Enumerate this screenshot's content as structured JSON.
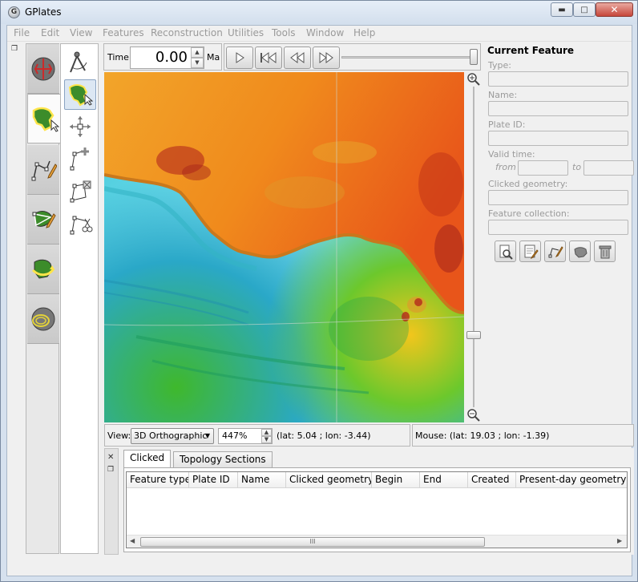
{
  "window": {
    "title": "GPlates",
    "app_icon_glyph": "G",
    "controls": {
      "minimize": "minimize-icon",
      "maximize": "maximize-icon",
      "close": "close-icon"
    }
  },
  "menu": [
    "File",
    "Edit",
    "View",
    "Features",
    "Reconstruction",
    "Utilities",
    "Tools",
    "Window",
    "Help"
  ],
  "toolgroups": [
    "view-globe-icon",
    "feature-inspection-icon",
    "digitisation-icon",
    "topology-icon",
    "pole-manipulation-icon",
    "small-circle-icon"
  ],
  "tools": [
    "measure-distance-icon",
    "select-feature-icon",
    "move-vertex-icon",
    "insert-vertex-icon",
    "delete-vertex-icon",
    "split-feature-icon"
  ],
  "time": {
    "label": "Time:",
    "value": "0.00",
    "unit": "Ma",
    "slider_fraction": 1.0
  },
  "animation": {
    "buttons": [
      "play-icon",
      "reset-to-start-icon",
      "step-back-icon",
      "step-forward-icon"
    ]
  },
  "view_bar": {
    "label": "View:",
    "projection": "3D Orthographic",
    "zoom": "447%",
    "coords": "(lat: 5.04 ; lon: -3.44)"
  },
  "mouse_bar": {
    "coords": "Mouse: (lat: 19.03 ; lon: -1.39)"
  },
  "zoom_slider": {
    "zoom_in_icon": "zoom-in-icon",
    "zoom_out_icon": "zoom-out-icon"
  },
  "current_feature": {
    "title": "Current Feature",
    "fields": {
      "type": {
        "label": "Type:",
        "value": ""
      },
      "name": {
        "label": "Name:",
        "value": ""
      },
      "plate_id": {
        "label": "Plate ID:",
        "value": ""
      },
      "valid_time": {
        "label": "Valid time:",
        "from_label": "from",
        "to_label": "to",
        "from": "",
        "to": ""
      },
      "clicked_geometry": {
        "label": "Clicked geometry:",
        "value": ""
      },
      "feature_collection": {
        "label": "Feature collection:",
        "value": ""
      }
    },
    "actions": [
      "query-feature-icon",
      "edit-feature-icon",
      "clone-geometry-icon",
      "create-feature-icon",
      "delete-feature-icon"
    ]
  },
  "bottom_dock": {
    "tabs": [
      {
        "label": "Clicked",
        "active": true
      },
      {
        "label": "Topology Sections",
        "active": false
      }
    ],
    "columns": [
      "Feature type",
      "Plate ID",
      "Name",
      "Clicked geometry",
      "Begin",
      "End",
      "Created",
      "Present-day geometry (lat"
    ],
    "scroll_grip": "III"
  }
}
